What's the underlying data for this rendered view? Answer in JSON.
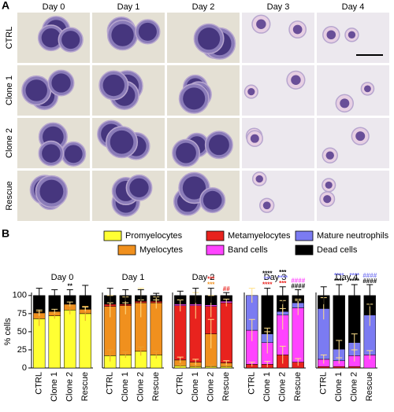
{
  "panel_a": {
    "label": "A",
    "columns": [
      "Day 0",
      "Day 1",
      "Day 2",
      "Day 3",
      "Day 4"
    ],
    "rows": [
      "CTRL",
      "Clone 1",
      "Clone 2",
      "Rescue"
    ]
  },
  "panel_b_label": "B",
  "chart_data": [
    {
      "type": "bar",
      "title": "Day 0",
      "ylabel": "% cells",
      "categories": [
        "CTRL",
        "Clone 1",
        "Clone 2",
        "Rescue"
      ],
      "ylim": [
        0,
        115
      ],
      "yticks": [
        0,
        25,
        50,
        75,
        100
      ],
      "series": [
        {
          "name": "Promyelocytes",
          "color": "#ffff33",
          "values": [
            68,
            72,
            80,
            75
          ],
          "errors": [
            10,
            4,
            6,
            10
          ]
        },
        {
          "name": "Myelocytes",
          "color": "#f0901e",
          "values": [
            8,
            6,
            8,
            6
          ],
          "errors": [
            4,
            3,
            3,
            3
          ]
        },
        {
          "name": "Metamyelocytes",
          "color": "#e8231e",
          "values": [
            0,
            0,
            0,
            0
          ],
          "errors": [
            null,
            null,
            null,
            null
          ]
        },
        {
          "name": "Band cells",
          "color": "#ff44ff",
          "values": [
            0,
            0,
            0,
            0
          ],
          "errors": [
            null,
            null,
            null,
            null
          ]
        },
        {
          "name": "Mature neutrophils",
          "color": "#7b7bf2",
          "values": [
            0,
            0,
            0,
            0
          ],
          "errors": [
            null,
            null,
            null,
            null
          ]
        },
        {
          "name": "Dead cells",
          "color": "#000000",
          "values": [
            24,
            22,
            12,
            19
          ],
          "errors": [
            10,
            8,
            8,
            14
          ]
        }
      ],
      "annotations": [
        [],
        [],
        [
          {
            "text": "**",
            "color": "#000000"
          }
        ],
        []
      ]
    },
    {
      "type": "bar",
      "title": "Day 1",
      "categories": [
        "CTRL",
        "Clone 1",
        "Clone 2",
        "Rescue"
      ],
      "ylim": [
        0,
        115
      ],
      "series": [
        {
          "name": "Promyelocytes",
          "color": "#ffff33",
          "values": [
            17,
            18,
            23,
            18
          ],
          "errors": [
            8,
            4,
            6,
            5
          ]
        },
        {
          "name": "Myelocytes",
          "color": "#f0901e",
          "values": [
            68,
            68,
            67,
            72
          ],
          "errors": [
            15,
            12,
            20,
            8
          ]
        },
        {
          "name": "Metamyelocytes",
          "color": "#e8231e",
          "values": [
            3,
            2,
            2,
            2
          ],
          "errors": [
            2,
            2,
            2,
            2
          ]
        },
        {
          "name": "Band cells",
          "color": "#ff44ff",
          "values": [
            0,
            0,
            0,
            0
          ],
          "errors": [
            null,
            null,
            null,
            null
          ]
        },
        {
          "name": "Mature neutrophils",
          "color": "#7b7bf2",
          "values": [
            0,
            0,
            0,
            0
          ],
          "errors": [
            null,
            null,
            null,
            null
          ]
        },
        {
          "name": "Dead cells",
          "color": "#000000",
          "values": [
            12,
            12,
            8,
            8
          ],
          "errors": [
            10,
            8,
            8,
            3
          ]
        }
      ],
      "annotations": [
        [],
        [],
        [],
        []
      ]
    },
    {
      "type": "bar",
      "title": "Day 2",
      "categories": [
        "CTRL",
        "Clone 1",
        "Clone 2",
        "Rescue"
      ],
      "ylim": [
        0,
        115
      ],
      "series": [
        {
          "name": "Promyelocytes",
          "color": "#ffff33",
          "values": [
            3,
            2,
            2,
            2
          ],
          "errors": [
            2,
            2,
            2,
            2
          ]
        },
        {
          "name": "Myelocytes",
          "color": "#f0901e",
          "values": [
            8,
            6,
            45,
            5
          ],
          "errors": [
            4,
            4,
            20,
            3
          ]
        },
        {
          "name": "Metamyelocytes",
          "color": "#e8231e",
          "values": [
            75,
            78,
            38,
            83
          ],
          "errors": [
            8,
            18,
            15,
            5
          ]
        },
        {
          "name": "Band cells",
          "color": "#ff44ff",
          "values": [
            2,
            2,
            2,
            2
          ],
          "errors": [
            null,
            null,
            null,
            null
          ]
        },
        {
          "name": "Mature neutrophils",
          "color": "#7b7bf2",
          "values": [
            0,
            0,
            0,
            0
          ],
          "errors": [
            null,
            null,
            null,
            null
          ]
        },
        {
          "name": "Dead cells",
          "color": "#000000",
          "values": [
            12,
            12,
            13,
            8
          ],
          "errors": [
            6,
            10,
            10,
            4
          ]
        }
      ],
      "annotations": [
        [],
        [],
        [
          {
            "text": "***",
            "color": "#f0901e"
          },
          {
            "text": "***",
            "color": "#e8231e"
          }
        ],
        [
          {
            "text": "##",
            "color": "#e8231e"
          }
        ]
      ]
    },
    {
      "type": "bar",
      "title": "Day 3",
      "categories": [
        "CTRL",
        "Clone 1",
        "Clone 2",
        "Rescue"
      ],
      "ylim": [
        0,
        115
      ],
      "series": [
        {
          "name": "Promyelocytes",
          "color": "#ffff33",
          "values": [
            0,
            0,
            0,
            0
          ],
          "errors": [
            null,
            null,
            null,
            null
          ]
        },
        {
          "name": "Myelocytes",
          "color": "#f0901e",
          "values": [
            0,
            0,
            0,
            0
          ],
          "errors": [
            null,
            null,
            null,
            null
          ]
        },
        {
          "name": "Metamyelocytes",
          "color": "#e8231e",
          "values": [
            5,
            5,
            18,
            8
          ],
          "errors": [
            3,
            4,
            12,
            5
          ]
        },
        {
          "name": "Band cells",
          "color": "#ff44ff",
          "values": [
            47,
            30,
            55,
            75
          ],
          "errors": [
            15,
            15,
            20,
            10
          ]
        },
        {
          "name": "Mature neutrophils",
          "color": "#7b7bf2",
          "values": [
            48,
            12,
            5,
            7
          ],
          "errors": [
            10,
            8,
            4,
            5
          ]
        },
        {
          "name": "Dead cells",
          "color": "#000000",
          "values": [
            0,
            53,
            22,
            10
          ],
          "errors": [
            null,
            10,
            12,
            8
          ]
        }
      ],
      "annotations": [
        [],
        [
          {
            "text": "****",
            "color": "#e8231e"
          },
          {
            "text": "***",
            "color": "#7b7bf2"
          },
          {
            "text": "****",
            "color": "#000000"
          }
        ],
        [
          {
            "text": "***",
            "color": "#e8231e"
          },
          {
            "text": "****",
            "color": "#7b7bf2"
          },
          {
            "text": "***",
            "color": "#000000"
          }
        ],
        [
          {
            "text": "####",
            "color": "#000000"
          },
          {
            "text": "####",
            "color": "#ff44ff"
          }
        ]
      ]
    },
    {
      "type": "bar",
      "title": "Day 4",
      "categories": [
        "CTRL",
        "Clone 1",
        "Clone 2",
        "Rescue"
      ],
      "ylim": [
        0,
        115
      ],
      "series": [
        {
          "name": "Promyelocytes",
          "color": "#ffff33",
          "values": [
            0,
            0,
            0,
            0
          ],
          "errors": [
            null,
            null,
            null,
            null
          ]
        },
        {
          "name": "Myelocytes",
          "color": "#f0901e",
          "values": [
            0,
            0,
            0,
            0
          ],
          "errors": [
            null,
            null,
            null,
            null
          ]
        },
        {
          "name": "Metamyelocytes",
          "color": "#e8231e",
          "values": [
            2,
            2,
            2,
            0
          ],
          "errors": [
            null,
            null,
            null,
            null
          ]
        },
        {
          "name": "Band cells",
          "color": "#ff44ff",
          "values": [
            10,
            8,
            15,
            18
          ],
          "errors": [
            6,
            4,
            8,
            6
          ]
        },
        {
          "name": "Mature neutrophils",
          "color": "#7b7bf2",
          "values": [
            70,
            16,
            18,
            55
          ],
          "errors": [
            15,
            12,
            12,
            15
          ]
        },
        {
          "name": "Dead cells",
          "color": "#000000",
          "values": [
            18,
            74,
            65,
            27
          ],
          "errors": [
            12,
            15,
            15,
            15
          ]
        }
      ],
      "annotations": [
        [],
        [
          {
            "text": "****",
            "color": "#000000"
          },
          {
            "text": "****",
            "color": "#7b7bf2"
          }
        ],
        [
          {
            "text": "****",
            "color": "#000000"
          },
          {
            "text": "****",
            "color": "#7b7bf2"
          }
        ],
        [
          {
            "text": "####",
            "color": "#000000"
          },
          {
            "text": "####",
            "color": "#7b7bf2"
          }
        ]
      ]
    }
  ]
}
